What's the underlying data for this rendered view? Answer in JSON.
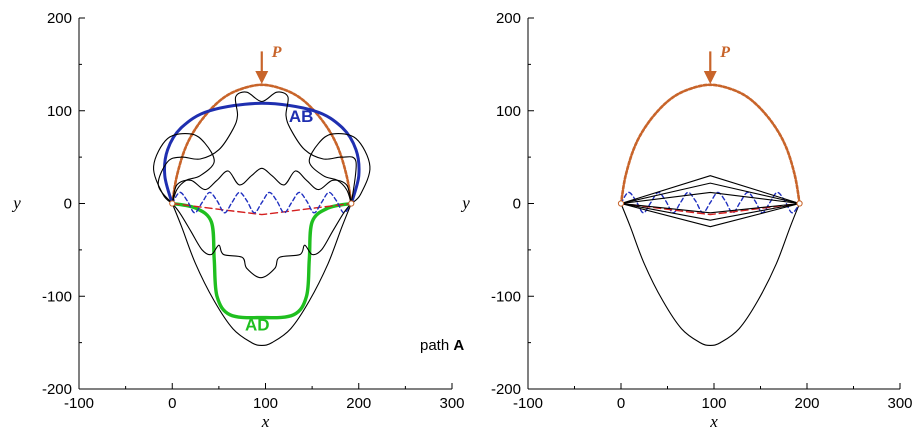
{
  "path_label": {
    "prefix": "path",
    "id": "A"
  },
  "colors": {
    "axes": "#000000",
    "shapes": "#000000",
    "load": "#c8642a",
    "ab": "#1f2fb0",
    "ad": "#1fbf1f",
    "flat": "#d42020",
    "dashed_blue": "#2030c0"
  },
  "chart_data": [
    {
      "type": "line",
      "title": "",
      "xlabel": "x",
      "ylabel": "y",
      "xlim": [
        -100,
        300
      ],
      "ylim": [
        -200,
        200
      ],
      "xticks": [
        -100,
        0,
        100,
        200,
        300
      ],
      "yticks": [
        -200,
        -100,
        0,
        100,
        200
      ],
      "load_label": "P",
      "annotations": [
        "AB",
        "AD"
      ],
      "series": [
        {
          "key": "semicircle",
          "style": "orange-dotted",
          "x": [
            0,
            5,
            15,
            30,
            50,
            70,
            96,
            122,
            142,
            162,
            177,
            187,
            192
          ],
          "y": [
            0,
            30,
            62,
            88,
            110,
            122,
            128,
            122,
            110,
            88,
            62,
            30,
            0
          ]
        },
        {
          "key": "AB",
          "style": "blue-thick",
          "x": [
            0,
            -8,
            -5,
            10,
            40,
            96,
            152,
            182,
            197,
            200,
            192
          ],
          "y": [
            0,
            30,
            58,
            82,
            100,
            108,
            100,
            82,
            58,
            30,
            0
          ]
        },
        {
          "key": "AD",
          "style": "green-thick",
          "x": [
            0,
            25,
            42,
            45,
            48,
            62,
            96,
            130,
            144,
            147,
            150,
            167,
            192
          ],
          "y": [
            0,
            -5,
            -20,
            -60,
            -100,
            -120,
            -123,
            -120,
            -100,
            -60,
            -20,
            -5,
            0
          ]
        },
        {
          "key": "flat",
          "style": "red-dashed",
          "x": [
            0,
            96,
            192
          ],
          "y": [
            0,
            -12,
            0
          ]
        },
        {
          "key": "wave",
          "style": "blue-dashed",
          "x": [
            0,
            8,
            16,
            24,
            32,
            40,
            48,
            56,
            64,
            72,
            80,
            88,
            96,
            104,
            112,
            120,
            128,
            136,
            144,
            152,
            160,
            168,
            176,
            184,
            192
          ],
          "y": [
            0,
            12,
            3,
            -10,
            1,
            12,
            3,
            -10,
            1,
            12,
            3,
            -10,
            1,
            12,
            3,
            -10,
            1,
            12,
            3,
            -10,
            1,
            12,
            3,
            -10,
            0
          ]
        },
        {
          "key": "outer-sag",
          "style": "black",
          "x": [
            0,
            10,
            25,
            45,
            65,
            85,
            96,
            107,
            127,
            147,
            167,
            182,
            192
          ],
          "y": [
            0,
            -25,
            -65,
            -105,
            -135,
            -150,
            -153,
            -150,
            -135,
            -105,
            -65,
            -25,
            0
          ]
        },
        {
          "key": "inner-sag",
          "style": "black",
          "x": [
            0,
            8,
            20,
            32,
            42,
            50,
            55,
            75,
            80,
            95,
            110,
            115,
            137,
            142,
            150,
            160,
            172,
            184,
            192
          ],
          "y": [
            0,
            -10,
            -30,
            -50,
            -55,
            -45,
            -55,
            -58,
            -70,
            -80,
            -70,
            -58,
            -55,
            -45,
            -55,
            -50,
            -30,
            -10,
            0
          ]
        },
        {
          "key": "dome-top",
          "style": "black",
          "x": [
            0,
            -15,
            -5,
            10,
            30,
            50,
            65,
            70,
            68,
            80,
            96,
            112,
            124,
            122,
            127,
            142,
            162,
            182,
            197,
            192
          ],
          "y": [
            0,
            20,
            45,
            50,
            48,
            58,
            80,
            95,
            115,
            120,
            110,
            120,
            115,
            95,
            80,
            58,
            48,
            50,
            45,
            0
          ]
        },
        {
          "key": "dome-inner",
          "style": "black",
          "x": [
            0,
            5,
            20,
            35,
            48,
            60,
            72,
            85,
            96,
            107,
            120,
            132,
            144,
            157,
            172,
            187,
            192
          ],
          "y": [
            0,
            20,
            25,
            15,
            25,
            35,
            20,
            30,
            38,
            30,
            20,
            35,
            25,
            15,
            25,
            20,
            0
          ]
        },
        {
          "key": "lobes-left",
          "style": "black",
          "x": [
            0,
            -10,
            -20,
            -5,
            20,
            35,
            45,
            30,
            15,
            5,
            0
          ],
          "y": [
            0,
            10,
            40,
            70,
            75,
            65,
            45,
            30,
            25,
            15,
            0
          ]
        },
        {
          "key": "lobes-right",
          "style": "black",
          "x": [
            192,
            202,
            212,
            197,
            172,
            157,
            147,
            162,
            177,
            187,
            192
          ],
          "y": [
            0,
            10,
            40,
            70,
            75,
            65,
            45,
            30,
            25,
            15,
            0
          ]
        }
      ]
    },
    {
      "type": "line",
      "title": "",
      "xlabel": "x",
      "ylabel": "y",
      "xlim": [
        -100,
        300
      ],
      "ylim": [
        -200,
        200
      ],
      "xticks": [
        -100,
        0,
        100,
        200,
        300
      ],
      "yticks": [
        -200,
        -100,
        0,
        100,
        200
      ],
      "load_label": "P",
      "annotations": [],
      "series": [
        {
          "key": "semicircle",
          "style": "orange-dotted",
          "x": [
            0,
            5,
            15,
            30,
            50,
            70,
            96,
            122,
            142,
            162,
            177,
            187,
            192
          ],
          "y": [
            0,
            30,
            62,
            88,
            110,
            122,
            128,
            122,
            110,
            88,
            62,
            30,
            0
          ]
        },
        {
          "key": "sag",
          "style": "black",
          "x": [
            0,
            10,
            25,
            45,
            65,
            85,
            96,
            107,
            127,
            147,
            167,
            182,
            192
          ],
          "y": [
            0,
            -25,
            -65,
            -105,
            -135,
            -150,
            -153,
            -150,
            -135,
            -105,
            -65,
            -25,
            0
          ]
        },
        {
          "key": "wave",
          "style": "blue-dashed",
          "x": [
            0,
            8,
            16,
            24,
            32,
            40,
            48,
            56,
            64,
            72,
            80,
            88,
            96,
            104,
            112,
            120,
            128,
            136,
            144,
            152,
            160,
            168,
            176,
            184,
            192
          ],
          "y": [
            0,
            12,
            3,
            -10,
            1,
            12,
            3,
            -10,
            1,
            12,
            3,
            -10,
            1,
            12,
            3,
            -10,
            1,
            12,
            3,
            -10,
            1,
            12,
            3,
            -10,
            0
          ]
        },
        {
          "key": "flat",
          "style": "red-dashed",
          "x": [
            0,
            96,
            192
          ],
          "y": [
            0,
            -12,
            0
          ]
        },
        {
          "key": "diamond-1",
          "style": "black",
          "x": [
            0,
            96,
            192,
            96,
            0
          ],
          "y": [
            0,
            30,
            0,
            -25,
            0
          ]
        },
        {
          "key": "diamond-2",
          "style": "black",
          "x": [
            0,
            96,
            192,
            96,
            0
          ],
          "y": [
            0,
            22,
            0,
            -18,
            0
          ]
        },
        {
          "key": "diamond-3",
          "style": "black",
          "x": [
            0,
            96,
            192,
            96,
            0
          ],
          "y": [
            0,
            12,
            0,
            -10,
            0
          ]
        }
      ]
    }
  ]
}
